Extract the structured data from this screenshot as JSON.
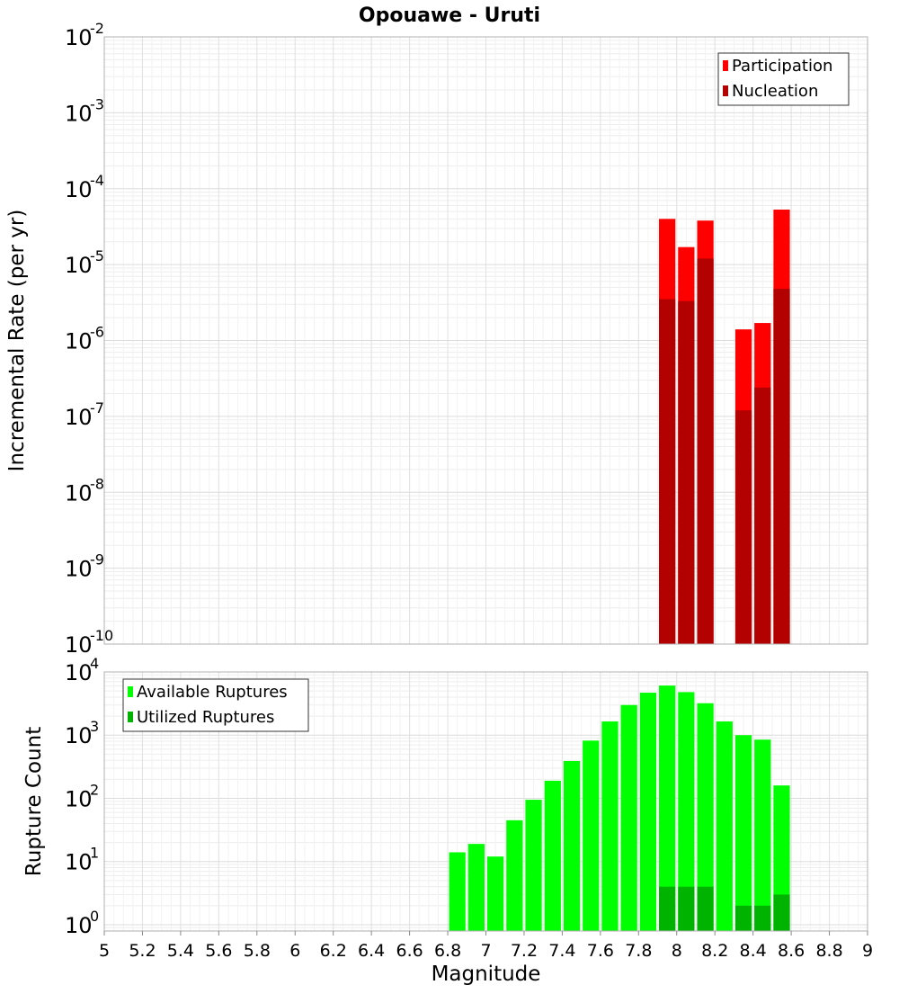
{
  "chart_data": {
    "title": "Opouawe - Uruti",
    "xlabel": "Magnitude",
    "xlim": [
      5,
      9
    ],
    "x_ticks": [
      "5",
      "5.2",
      "5.4",
      "5.6",
      "5.8",
      "6",
      "6.2",
      "6.4",
      "6.6",
      "6.8",
      "7",
      "7.2",
      "7.4",
      "7.6",
      "7.8",
      "8",
      "8.2",
      "8.4",
      "8.6",
      "8.8",
      "9"
    ],
    "bin_width": 0.1,
    "panels": [
      {
        "type": "bar",
        "scale": "log",
        "ylabel": "Incremental Rate (per yr)",
        "ylim_exp": [
          -10,
          -2
        ],
        "y_tick_exponents": [
          "-10",
          "-9",
          "-8",
          "-7",
          "-6",
          "-5",
          "-4",
          "-3",
          "-2"
        ],
        "legend_placement": "top-right",
        "grid": true,
        "series": [
          {
            "name": "Participation",
            "color": "#ff0000",
            "x": [
              7.95,
              8.05,
              8.15,
              8.35,
              8.45,
              8.55
            ],
            "values": [
              4e-05,
              1.7e-05,
              3.8e-05,
              1.4e-06,
              1.7e-06,
              5.3e-05
            ]
          },
          {
            "name": "Nucleation",
            "color": "#b30000",
            "x": [
              7.95,
              8.05,
              8.15,
              8.35,
              8.45,
              8.55
            ],
            "values": [
              3.5e-06,
              3.3e-06,
              1.2e-05,
              1.2e-07,
              2.4e-07,
              4.8e-06
            ]
          }
        ]
      },
      {
        "type": "bar",
        "scale": "log",
        "ylabel": "Rupture Count",
        "ylim_exp": [
          -0.1,
          4
        ],
        "y_tick_exponents": [
          "0",
          "1",
          "2",
          "3",
          "4"
        ],
        "legend_placement": "top-left",
        "grid": true,
        "series": [
          {
            "name": "Available Ruptures",
            "color": "#00ff00",
            "x": [
              6.85,
              6.95,
              7.05,
              7.15,
              7.25,
              7.35,
              7.45,
              7.55,
              7.65,
              7.75,
              7.85,
              7.95,
              8.05,
              8.15,
              8.25,
              8.35,
              8.45,
              8.55
            ],
            "values": [
              14,
              19,
              12,
              45,
              95,
              190,
              390,
              820,
              1650,
              3000,
              4700,
              6100,
              4800,
              3200,
              1650,
              1000,
              850,
              160
            ]
          },
          {
            "name": "Utilized Ruptures",
            "color": "#00b300",
            "x": [
              7.95,
              8.05,
              8.15,
              8.35,
              8.45,
              8.55
            ],
            "values": [
              4,
              4,
              4,
              2,
              2,
              3
            ]
          }
        ]
      }
    ]
  }
}
